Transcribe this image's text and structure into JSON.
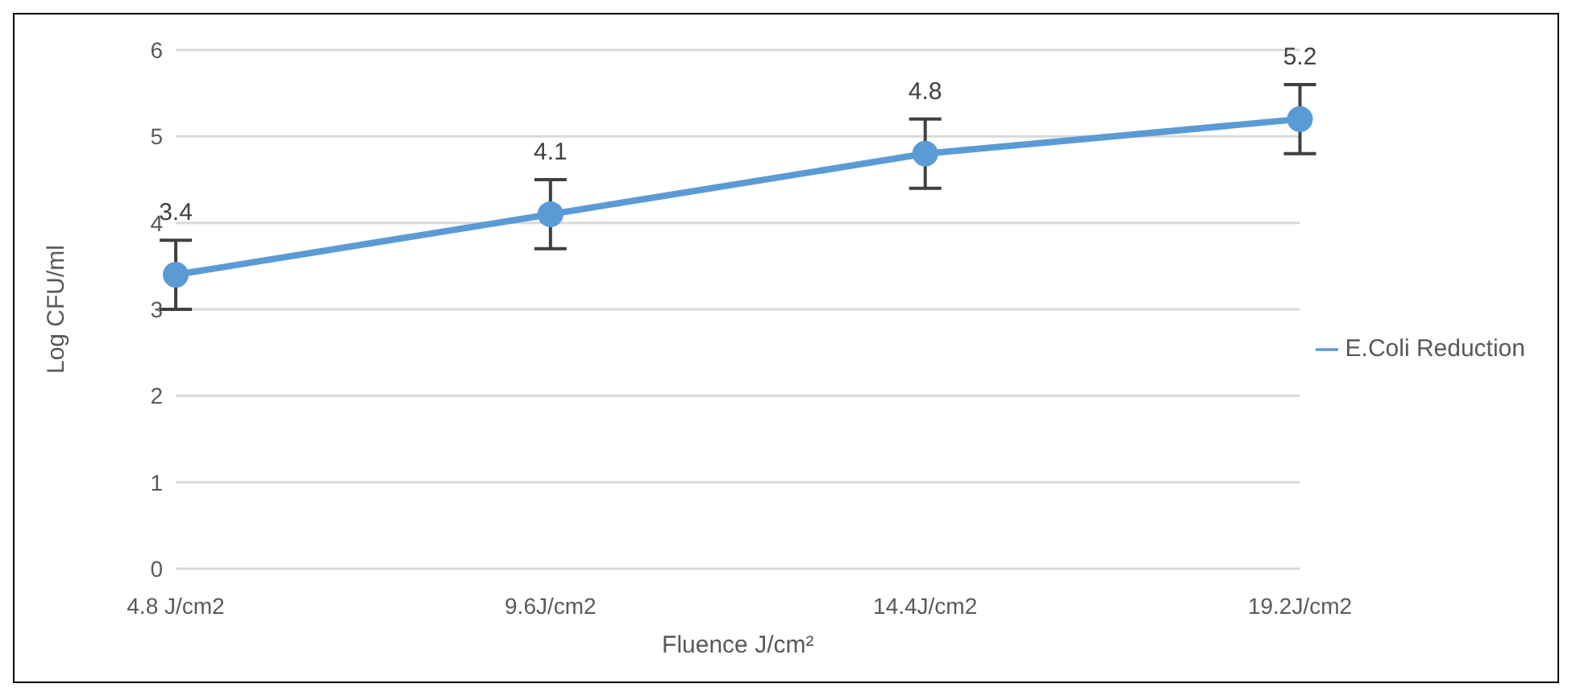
{
  "chart_data": {
    "type": "line",
    "xlabel": "Fluence J/cm²",
    "ylabel": "Log CFU/ml",
    "categories": [
      "4.8 J/cm2",
      "9.6J/cm2",
      "14.4J/cm2",
      "19.2J/cm2"
    ],
    "series": [
      {
        "name": "E.Coli Reduction",
        "color": "#5b9bd5",
        "values": [
          3.4,
          4.1,
          4.8,
          5.2
        ],
        "errors": [
          0.4,
          0.4,
          0.4,
          0.4
        ]
      }
    ],
    "ylim": [
      0,
      6
    ],
    "yticks": [
      0,
      1,
      2,
      3,
      4,
      5,
      6
    ],
    "grid": "y",
    "legend": "right",
    "marker": "circle",
    "line_style": "solid",
    "data_labels": true
  }
}
